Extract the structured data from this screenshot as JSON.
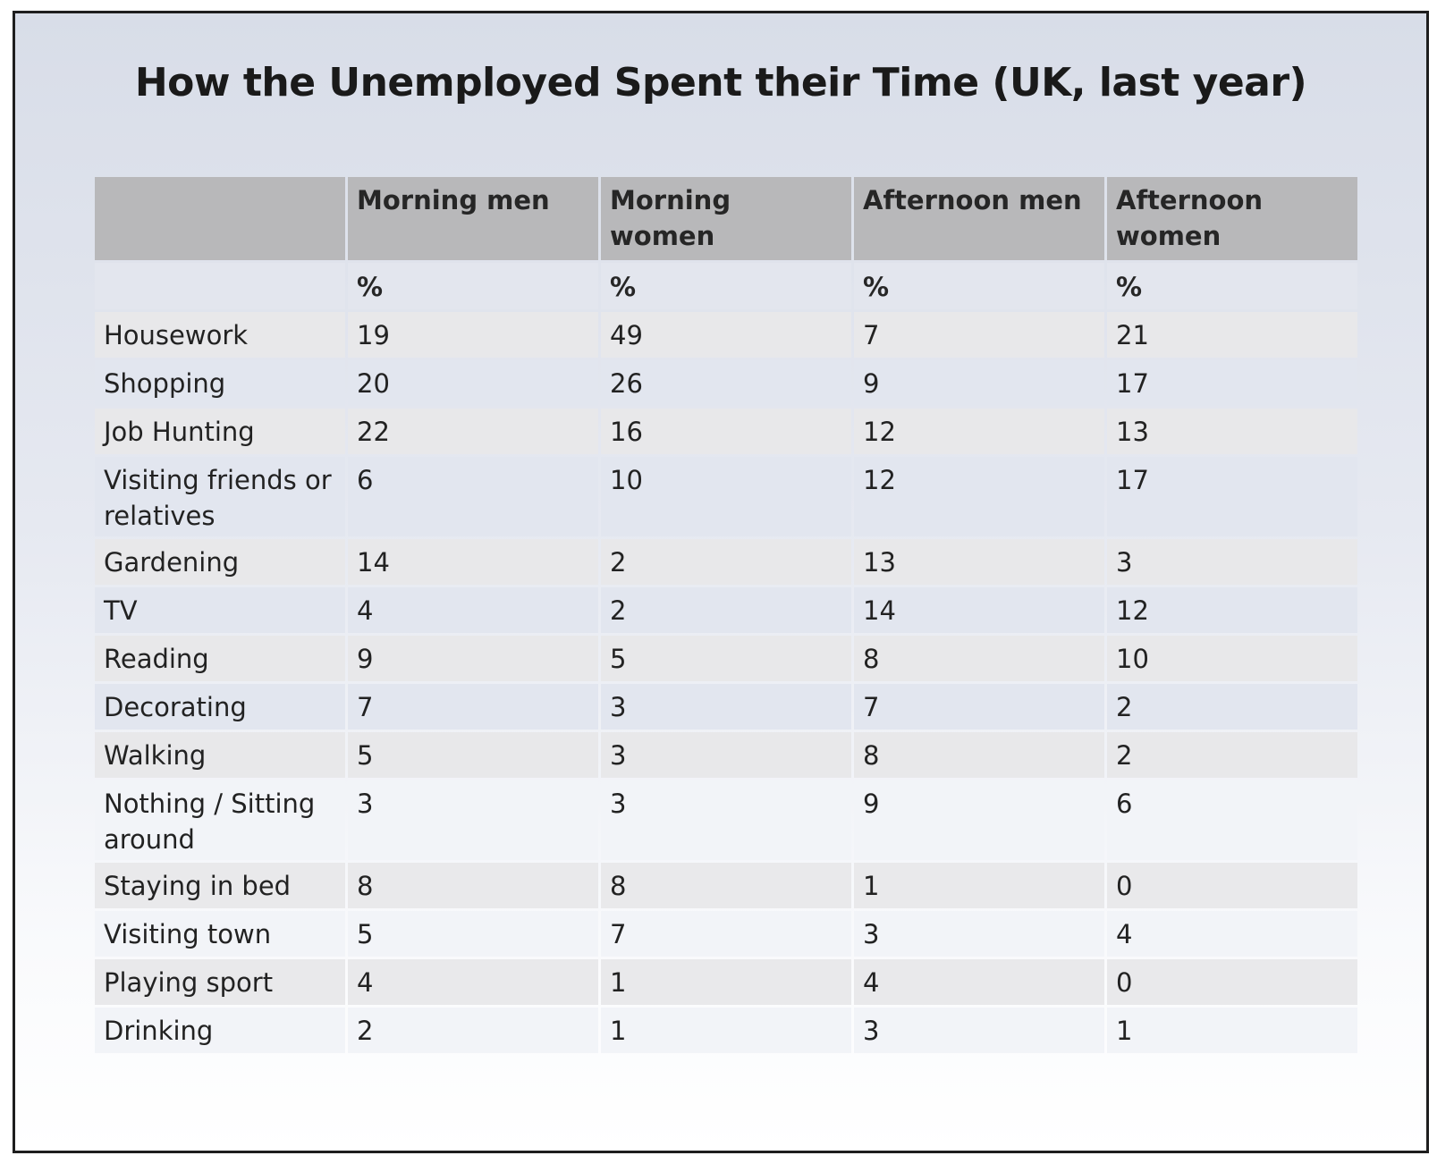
{
  "chart_data": {
    "type": "table",
    "title": "How the Unemployed Spent their Time (UK, last year)",
    "columns": [
      "Morning men",
      "Morning women",
      "Afternoon men",
      "Afternoon women"
    ],
    "units": [
      "%",
      "%",
      "%",
      "%"
    ],
    "rows": [
      {
        "label": "Housework",
        "values": [
          19,
          49,
          7,
          21
        ]
      },
      {
        "label": "Shopping",
        "values": [
          20,
          26,
          9,
          17
        ]
      },
      {
        "label": "Job Hunting",
        "values": [
          22,
          16,
          12,
          13
        ]
      },
      {
        "label": "Visiting friends or relatives",
        "values": [
          6,
          10,
          12,
          17
        ]
      },
      {
        "label": "Gardening",
        "values": [
          14,
          2,
          13,
          3
        ]
      },
      {
        "label": "TV",
        "values": [
          4,
          2,
          14,
          12
        ]
      },
      {
        "label": "Reading",
        "values": [
          9,
          5,
          8,
          10
        ]
      },
      {
        "label": "Decorating",
        "values": [
          7,
          3,
          7,
          2
        ]
      },
      {
        "label": "Walking",
        "values": [
          5,
          3,
          8,
          2
        ]
      },
      {
        "label": "Nothing / Sitting around",
        "values": [
          3,
          3,
          9,
          6
        ]
      },
      {
        "label": "Staying in bed",
        "values": [
          8,
          8,
          1,
          0
        ]
      },
      {
        "label": "Visiting town",
        "values": [
          5,
          7,
          3,
          4
        ]
      },
      {
        "label": "Playing sport",
        "values": [
          4,
          1,
          4,
          0
        ]
      },
      {
        "label": "Drinking",
        "values": [
          2,
          1,
          3,
          1
        ]
      }
    ]
  }
}
